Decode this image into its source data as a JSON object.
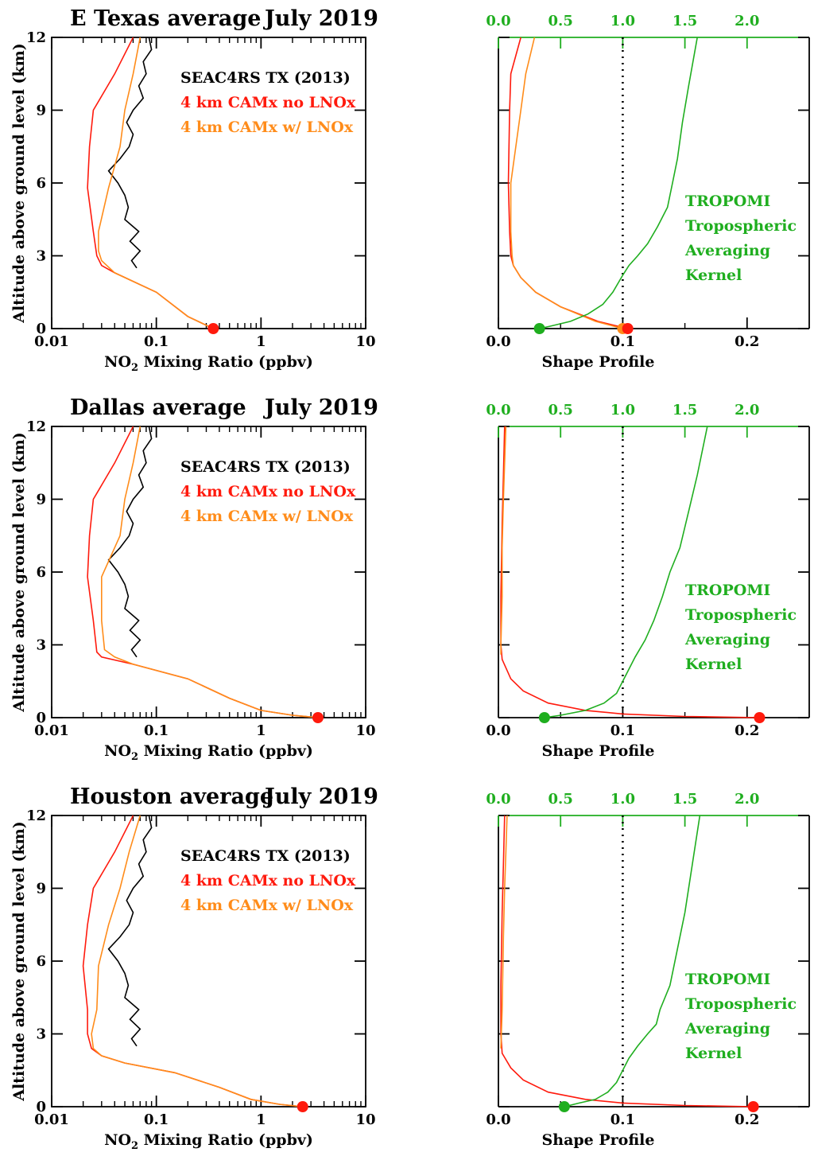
{
  "figure": {
    "colors": {
      "axis": "#000000",
      "seac4rs": "#000000",
      "camx_no_lnox": "#ff1a0d",
      "camx_w_lnox": "#ff8c1a",
      "tropomi_ak": "#1fae1f",
      "unit_line": "#000000"
    },
    "left_xlabel_prefix": "NO",
    "left_xlabel_sub": "2",
    "left_xlabel_suffix": " Mixing Ratio (ppbv)",
    "left_ylabel": "Altitude above ground level (km)",
    "right_xlabel": "Shape Profile",
    "left_yticks": [
      "0",
      "3",
      "6",
      "9",
      "12"
    ],
    "left_xticks": [
      "0.01",
      "0.1",
      "1",
      "10"
    ],
    "right_bottom_xticks": [
      "0.0",
      "0.1",
      "0.2"
    ],
    "right_top_xticks": [
      "0.0",
      "0.5",
      "1.0",
      "1.5",
      "2.0"
    ],
    "legend": [
      "SEAC4RS TX (2013)",
      "4 km CAMx no LNOx",
      "4 km CAMx w/ LNOx"
    ],
    "ak_label": [
      "TROPOMI",
      "Tropospheric",
      "Averaging",
      "Kernel"
    ]
  },
  "chart_data": [
    {
      "type": "line",
      "panel": "left",
      "row": 0,
      "title_region": "E Texas average",
      "title_date": "July 2019",
      "xscale": "log",
      "xlim": [
        0.01,
        10
      ],
      "ylim": [
        0,
        12
      ],
      "xlabel": "NO2 Mixing Ratio (ppbv)",
      "ylabel": "Altitude above ground level (km)",
      "series": [
        {
          "name": "SEAC4RS TX (2013)",
          "color_key": "seac4rs",
          "x": [
            0.065,
            0.058,
            0.07,
            0.056,
            0.068,
            0.05,
            0.054,
            0.05,
            0.043,
            0.035,
            0.045,
            0.055,
            0.06,
            0.052,
            0.06,
            0.075,
            0.068,
            0.08,
            0.075,
            0.09,
            0.085
          ],
          "y": [
            2.5,
            2.8,
            3.2,
            3.6,
            4.0,
            4.5,
            5.0,
            5.5,
            6.0,
            6.5,
            7.0,
            7.5,
            8.0,
            8.5,
            9.0,
            9.5,
            10.0,
            10.5,
            11.0,
            11.5,
            12.0
          ]
        },
        {
          "name": "4 km CAMx no LNOx",
          "color_key": "camx_no_lnox",
          "x": [
            0.35,
            0.2,
            0.1,
            0.04,
            0.03,
            0.027,
            0.025,
            0.022,
            0.023,
            0.025,
            0.04,
            0.06
          ],
          "y": [
            0.0,
            0.5,
            1.5,
            2.3,
            2.6,
            3.0,
            4.0,
            5.8,
            7.5,
            9.0,
            10.5,
            12.0
          ]
        },
        {
          "name": "4 km CAMx w/ LNOx",
          "color_key": "camx_w_lnox",
          "x": [
            0.35,
            0.2,
            0.1,
            0.04,
            0.03,
            0.028,
            0.028,
            0.035,
            0.045,
            0.05,
            0.06,
            0.07
          ],
          "y": [
            0.0,
            0.5,
            1.5,
            2.3,
            2.8,
            3.2,
            4.0,
            5.8,
            7.5,
            9.0,
            10.5,
            12.0
          ]
        }
      ],
      "surface_marker": {
        "x": 0.35,
        "y": 0.0,
        "color_key": "camx_no_lnox"
      }
    },
    {
      "type": "line",
      "panel": "right",
      "row": 0,
      "xlim": [
        0.0,
        0.25
      ],
      "ylim": [
        0,
        12
      ],
      "top_xlim": [
        0.0,
        2.5
      ],
      "xlabel": "Shape Profile",
      "series": [
        {
          "name": "4 km CAMx no LNOx",
          "color_key": "camx_no_lnox",
          "x": [
            0.104,
            0.08,
            0.05,
            0.03,
            0.018,
            0.012,
            0.01,
            0.009,
            0.008,
            0.009,
            0.01,
            0.018
          ],
          "y": [
            0.0,
            0.3,
            0.9,
            1.5,
            2.1,
            2.6,
            3.0,
            4.0,
            6.0,
            9.0,
            10.5,
            12.0
          ]
        },
        {
          "name": "4 km CAMx w/ LNOx",
          "color_key": "camx_w_lnox",
          "x": [
            0.1,
            0.078,
            0.05,
            0.03,
            0.018,
            0.012,
            0.011,
            0.01,
            0.01,
            0.018,
            0.022,
            0.029
          ],
          "y": [
            0.0,
            0.3,
            0.9,
            1.5,
            2.1,
            2.6,
            3.0,
            4.0,
            6.0,
            9.0,
            10.5,
            12.0
          ]
        },
        {
          "name": "TROPOMI Tropospheric Averaging Kernel",
          "color_key": "tropomi_ak",
          "x_top": [
            0.33,
            0.42,
            0.58,
            0.72,
            0.84,
            0.92,
            1.0,
            1.05,
            1.12,
            1.2,
            1.28,
            1.36,
            1.4,
            1.44,
            1.48,
            1.53,
            1.6
          ],
          "y": [
            0.0,
            0.1,
            0.3,
            0.6,
            1.0,
            1.5,
            2.2,
            2.6,
            3.0,
            3.5,
            4.2,
            5.0,
            6.0,
            7.0,
            8.5,
            10.0,
            12.0
          ]
        }
      ],
      "unit_line_top_x": 1.0,
      "markers": [
        {
          "x_top": 0.33,
          "y": 0.0,
          "color_key": "tropomi_ak"
        },
        {
          "x": 0.1,
          "y": 0.0,
          "color_key": "camx_w_lnox"
        },
        {
          "x": 0.104,
          "y": 0.0,
          "color_key": "camx_no_lnox"
        }
      ]
    },
    {
      "type": "line",
      "panel": "left",
      "row": 1,
      "title_region": "Dallas average",
      "title_date": "July 2019",
      "xscale": "log",
      "xlim": [
        0.01,
        10
      ],
      "ylim": [
        0,
        12
      ],
      "xlabel": "NO2 Mixing Ratio (ppbv)",
      "ylabel": "Altitude above ground level (km)",
      "series": [
        {
          "name": "SEAC4RS TX (2013)",
          "color_key": "seac4rs",
          "x": [
            0.065,
            0.058,
            0.07,
            0.056,
            0.068,
            0.05,
            0.054,
            0.05,
            0.043,
            0.035,
            0.045,
            0.055,
            0.06,
            0.052,
            0.06,
            0.075,
            0.068,
            0.08,
            0.075,
            0.09,
            0.085
          ],
          "y": [
            2.5,
            2.8,
            3.2,
            3.6,
            4.0,
            4.5,
            5.0,
            5.5,
            6.0,
            6.5,
            7.0,
            7.5,
            8.0,
            8.5,
            9.0,
            9.5,
            10.0,
            10.5,
            11.0,
            11.5,
            12.0
          ]
        },
        {
          "name": "4 km CAMx no LNOx",
          "color_key": "camx_no_lnox",
          "x": [
            3.5,
            2.0,
            1.0,
            0.5,
            0.2,
            0.06,
            0.03,
            0.027,
            0.025,
            0.022,
            0.023,
            0.025,
            0.04,
            0.06
          ],
          "y": [
            0.0,
            0.1,
            0.3,
            0.8,
            1.6,
            2.2,
            2.5,
            2.7,
            4.0,
            5.8,
            7.5,
            9.0,
            10.5,
            12.0
          ]
        },
        {
          "name": "4 km CAMx w/ LNOx",
          "color_key": "camx_w_lnox",
          "x": [
            3.5,
            2.0,
            1.0,
            0.5,
            0.2,
            0.06,
            0.04,
            0.032,
            0.03,
            0.03,
            0.045,
            0.05,
            0.06,
            0.07
          ],
          "y": [
            0.0,
            0.1,
            0.3,
            0.8,
            1.6,
            2.2,
            2.5,
            2.8,
            4.0,
            5.8,
            7.5,
            9.0,
            10.5,
            12.0
          ]
        }
      ],
      "surface_marker": {
        "x": 3.5,
        "y": 0.0,
        "color_key": "camx_no_lnox"
      }
    },
    {
      "type": "line",
      "panel": "right",
      "row": 1,
      "xlim": [
        0.0,
        0.25
      ],
      "ylim": [
        0,
        12
      ],
      "top_xlim": [
        0.0,
        2.5
      ],
      "xlabel": "Shape Profile",
      "series": [
        {
          "name": "4 km CAMx no LNOx",
          "color_key": "camx_no_lnox",
          "x": [
            0.21,
            0.15,
            0.1,
            0.07,
            0.04,
            0.02,
            0.01,
            0.003,
            0.002,
            0.002,
            0.003,
            0.004,
            0.005
          ],
          "y": [
            0.0,
            0.05,
            0.15,
            0.3,
            0.6,
            1.1,
            1.6,
            2.4,
            3.0,
            5.0,
            8.0,
            10.0,
            12.0
          ]
        },
        {
          "name": "4 km CAMx w/ LNOx",
          "color_key": "camx_w_lnox",
          "x": [
            0.002,
            0.002,
            0.003,
            0.003,
            0.004,
            0.005,
            0.006
          ],
          "y": [
            2.6,
            3.0,
            5.0,
            7.0,
            9.0,
            10.5,
            12.0
          ]
        },
        {
          "name": "TROPOMI Tropospheric Averaging Kernel",
          "color_key": "tropomi_ak",
          "x_top": [
            0.37,
            0.5,
            0.7,
            0.85,
            0.95,
            1.0,
            1.05,
            1.1,
            1.18,
            1.25,
            1.32,
            1.38,
            1.46,
            1.53,
            1.6,
            1.68
          ],
          "y": [
            0.0,
            0.1,
            0.3,
            0.6,
            1.0,
            1.5,
            2.0,
            2.5,
            3.2,
            4.0,
            5.0,
            6.0,
            7.0,
            8.5,
            10.0,
            12.0
          ]
        }
      ],
      "unit_line_top_x": 1.0,
      "markers": [
        {
          "x_top": 0.37,
          "y": 0.0,
          "color_key": "tropomi_ak"
        },
        {
          "x": 0.21,
          "y": 0.0,
          "color_key": "camx_no_lnox"
        }
      ]
    },
    {
      "type": "line",
      "panel": "left",
      "row": 2,
      "title_region": "Houston average",
      "title_date": "July 2019",
      "xscale": "log",
      "xlim": [
        0.01,
        10
      ],
      "ylim": [
        0,
        12
      ],
      "xlabel": "NO2 Mixing Ratio (ppbv)",
      "ylabel": "Altitude above ground level (km)",
      "series": [
        {
          "name": "SEAC4RS TX (2013)",
          "color_key": "seac4rs",
          "x": [
            0.065,
            0.058,
            0.07,
            0.056,
            0.068,
            0.05,
            0.054,
            0.05,
            0.043,
            0.035,
            0.045,
            0.055,
            0.06,
            0.052,
            0.06,
            0.075,
            0.068,
            0.08,
            0.075,
            0.09,
            0.085
          ],
          "y": [
            2.5,
            2.8,
            3.2,
            3.6,
            4.0,
            4.5,
            5.0,
            5.5,
            6.0,
            6.5,
            7.0,
            7.5,
            8.0,
            8.5,
            9.0,
            9.5,
            10.0,
            10.5,
            11.0,
            11.5,
            12.0
          ]
        },
        {
          "name": "4 km CAMx no LNOx",
          "color_key": "camx_no_lnox",
          "x": [
            2.5,
            1.5,
            0.8,
            0.4,
            0.15,
            0.05,
            0.03,
            0.024,
            0.022,
            0.022,
            0.02,
            0.022,
            0.025,
            0.04,
            0.06
          ],
          "y": [
            0.0,
            0.1,
            0.3,
            0.8,
            1.4,
            1.8,
            2.1,
            2.4,
            3.0,
            4.0,
            5.8,
            7.5,
            9.0,
            10.5,
            12.0
          ]
        },
        {
          "name": "4 km CAMx w/ LNOx",
          "color_key": "camx_w_lnox",
          "x": [
            2.5,
            1.5,
            0.8,
            0.4,
            0.15,
            0.05,
            0.03,
            0.025,
            0.024,
            0.027,
            0.028,
            0.035,
            0.045,
            0.055,
            0.07
          ],
          "y": [
            0.0,
            0.1,
            0.3,
            0.8,
            1.4,
            1.8,
            2.1,
            2.4,
            3.0,
            4.0,
            5.8,
            7.5,
            9.0,
            10.5,
            12.0
          ]
        }
      ],
      "surface_marker": {
        "x": 2.5,
        "y": 0.0,
        "color_key": "camx_no_lnox"
      }
    },
    {
      "type": "line",
      "panel": "right",
      "row": 2,
      "xlim": [
        0.0,
        0.25
      ],
      "ylim": [
        0,
        12
      ],
      "top_xlim": [
        0.0,
        2.5
      ],
      "xlabel": "Shape Profile",
      "series": [
        {
          "name": "4 km CAMx no LNOx",
          "color_key": "camx_no_lnox",
          "x": [
            0.205,
            0.15,
            0.1,
            0.07,
            0.04,
            0.02,
            0.01,
            0.003,
            0.002,
            0.002,
            0.003,
            0.004,
            0.005
          ],
          "y": [
            0.0,
            0.05,
            0.15,
            0.3,
            0.6,
            1.1,
            1.6,
            2.2,
            3.0,
            5.0,
            8.0,
            10.0,
            12.0
          ]
        },
        {
          "name": "4 km CAMx w/ LNOx",
          "color_key": "camx_w_lnox",
          "x": [
            0.002,
            0.003,
            0.004,
            0.005,
            0.006,
            0.007
          ],
          "y": [
            2.4,
            4.0,
            7.0,
            9.0,
            10.5,
            12.0
          ]
        },
        {
          "name": "TROPOMI Tropospheric Averaging Kernel",
          "color_key": "tropomi_ak",
          "x_top": [
            0.53,
            0.65,
            0.78,
            0.88,
            0.95,
            1.0,
            1.05,
            1.12,
            1.2,
            1.27,
            1.3,
            1.38,
            1.44,
            1.5,
            1.56,
            1.62
          ],
          "y": [
            0.0,
            0.15,
            0.3,
            0.6,
            1.0,
            1.5,
            2.0,
            2.5,
            3.0,
            3.4,
            4.0,
            5.0,
            6.5,
            8.0,
            10.0,
            12.0
          ]
        }
      ],
      "unit_line_top_x": 1.0,
      "markers": [
        {
          "x_top": 0.53,
          "y": 0.0,
          "color_key": "tropomi_ak"
        },
        {
          "x": 0.205,
          "y": 0.0,
          "color_key": "camx_no_lnox"
        }
      ]
    }
  ]
}
